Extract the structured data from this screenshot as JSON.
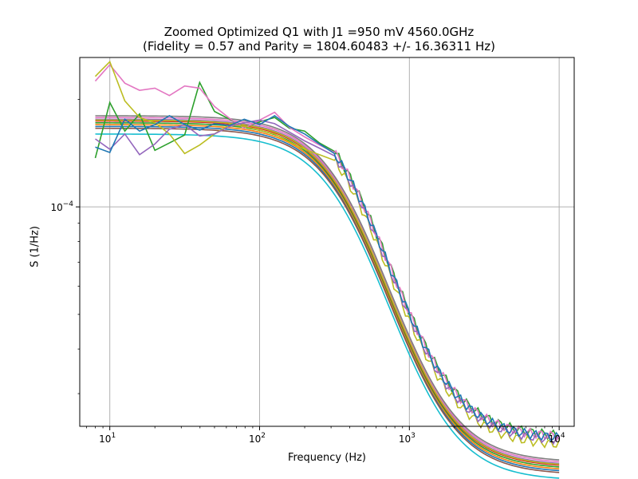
{
  "chart_data": {
    "type": "line",
    "title": "Zoomed Optimized Q1 with J1 =950 mV 4560.0GHz",
    "subtitle": "(Fidelity = 0.57 and Parity = 1804.60483 +/- 16.36311 Hz)",
    "xlabel": "Frequency (Hz)",
    "ylabel": "S (1/Hz)",
    "xscale": "log",
    "yscale": "log",
    "xlim": [
      6.3,
      12600
    ],
    "ylim": [
      2.43e-05,
      0.000262
    ],
    "grid": true,
    "x_ticks": [
      {
        "value": 10,
        "base": "10",
        "exp": "1"
      },
      {
        "value": 100,
        "base": "10",
        "exp": "2"
      },
      {
        "value": 1000,
        "base": "10",
        "exp": "3"
      },
      {
        "value": 10000,
        "base": "10",
        "exp": "4"
      }
    ],
    "y_ticks": [
      {
        "value": 0.0001,
        "base": "10",
        "exp": "−4"
      }
    ],
    "series_colors": [
      "#1f77b4",
      "#ff7f0e",
      "#2ca02c",
      "#d62728",
      "#9467bd",
      "#8c564b",
      "#e377c2",
      "#7f7f7f",
      "#bcbd22",
      "#17becf"
    ],
    "fit_levels": [
      0.000168,
      0.00017,
      0.000172,
      0.000174,
      0.000176,
      0.000166,
      0.000178,
      0.00018,
      0.000175,
      0.00016
    ],
    "noisy_traces": [
      {
        "color": "#2ca02c",
        "x": [
          8,
          10,
          12.6,
          15.8,
          20,
          25,
          31.6,
          39.8,
          50,
          63,
          79,
          100,
          126,
          158,
          200,
          251,
          316
        ],
        "y": [
          0.000137,
          0.000196,
          0.000163,
          0.000182,
          0.000144,
          0.000151,
          0.000159,
          0.000223,
          0.000185,
          0.000176,
          0.000167,
          0.000173,
          0.000178,
          0.000166,
          0.000163,
          0.000151,
          0.000143
        ]
      },
      {
        "color": "#e377c2",
        "x": [
          8,
          10,
          12.6,
          15.8,
          20,
          25,
          31.6,
          39.8,
          50,
          63,
          79,
          100,
          126,
          158,
          200,
          251,
          316
        ],
        "y": [
          0.000225,
          0.00025,
          0.000222,
          0.000212,
          0.000215,
          0.000205,
          0.000218,
          0.000215,
          0.000191,
          0.000177,
          0.000166,
          0.000175,
          0.000184,
          0.000167,
          0.000157,
          0.000149,
          0.000142
        ]
      },
      {
        "color": "#bcbd22",
        "x": [
          8,
          10,
          12.6,
          15.8,
          20,
          25,
          31.6,
          39.8,
          50,
          63,
          79,
          100,
          126,
          158,
          200,
          251,
          316
        ],
        "y": [
          0.000232,
          0.000255,
          0.000198,
          0.000178,
          0.000172,
          0.00016,
          0.000141,
          0.000149,
          0.00016,
          0.00017,
          0.000168,
          0.000164,
          0.00016,
          0.000152,
          0.000145,
          0.00014,
          0.000135
        ]
      },
      {
        "color": "#9467bd",
        "x": [
          8,
          10,
          12.6,
          15.8,
          20,
          25,
          31.6,
          39.8,
          50,
          63,
          79,
          100,
          126,
          158,
          200,
          251,
          316
        ],
        "y": [
          0.000155,
          0.000145,
          0.00016,
          0.00014,
          0.00015,
          0.000165,
          0.00017,
          0.000158,
          0.00016,
          0.000168,
          0.000172,
          0.000175,
          0.000171,
          0.000162,
          0.000153,
          0.000146,
          0.000139
        ]
      },
      {
        "color": "#1f77b4",
        "x": [
          8,
          10,
          12.6,
          15.8,
          20,
          25,
          31.6,
          39.8,
          50,
          63,
          79,
          100,
          126,
          158,
          200,
          251,
          316
        ],
        "y": [
          0.000147,
          0.000142,
          0.000176,
          0.000163,
          0.00017,
          0.00018,
          0.00017,
          0.000164,
          0.000171,
          0.000169,
          0.000176,
          0.00017,
          0.00018,
          0.000168,
          0.00016,
          0.00015,
          0.000141
        ]
      }
    ],
    "ticks_color": "#000000",
    "grid_color": "#b0b0b0"
  }
}
